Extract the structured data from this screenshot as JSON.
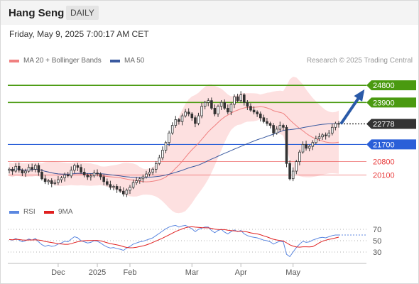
{
  "header": {
    "symbol": "Hang Seng",
    "timeframe": "DAILY",
    "datetime": "Friday, May 9, 2025 7:00:17 AM CET"
  },
  "legend": {
    "ma20": "MA 20 + Bollinger Bands",
    "ma50": "MA 50",
    "credit": "Research © 2025 Trading Central"
  },
  "rsi_legend": {
    "rsi": "RSI",
    "ma": "9MA"
  },
  "colors": {
    "ma20": "#f08080",
    "bands_fill": "#fde0e0",
    "ma50": "#3a5aa0",
    "resistance": "#4a9a10",
    "support": "#2a5fd8",
    "target": "#e83a3a",
    "current": "#333333",
    "arrow": "#2a5aa8",
    "candle": "#333333",
    "rsi": "#5b87e0",
    "rsi_ma": "#e02020"
  },
  "chart_data": [
    {
      "type": "candlestick",
      "title": "Hang Seng",
      "timeframe": "DAILY",
      "x_axis_labels": [
        "Dec",
        "2025",
        "Feb",
        "Mar",
        "Apr",
        "May"
      ],
      "y_range": [
        18700,
        25700
      ],
      "current_price": 22778,
      "key_levels": [
        {
          "value": 24800,
          "label": "24800",
          "kind": "resistance"
        },
        {
          "value": 23900,
          "label": "23900",
          "kind": "resistance"
        },
        {
          "value": 22778,
          "label": "22778",
          "kind": "current"
        },
        {
          "value": 21700,
          "label": "21700",
          "kind": "support"
        },
        {
          "value": 20800,
          "label": "20800",
          "kind": "target"
        },
        {
          "value": 20100,
          "label": "20100",
          "kind": "target"
        }
      ],
      "series": [
        {
          "name": "MA 20 + Bollinger Bands",
          "kind": "ma20_bollinger"
        },
        {
          "name": "MA 50",
          "kind": "ma50"
        }
      ],
      "closes": [
        20400,
        20300,
        20550,
        20350,
        20200,
        20300,
        20500,
        20400,
        20600,
        20250,
        19900,
        19750,
        19800,
        19650,
        19700,
        19850,
        19950,
        20100,
        20050,
        20350,
        20600,
        20500,
        20250,
        20100,
        20000,
        20050,
        20200,
        20150,
        20000,
        19750,
        19600,
        19450,
        19500,
        19350,
        19250,
        19100,
        19300,
        19450,
        19700,
        19800,
        19900,
        20000,
        20150,
        20250,
        20400,
        20700,
        21000,
        21400,
        21800,
        22300,
        22700,
        23000,
        22900,
        23200,
        23400,
        23300,
        23100,
        22800,
        23200,
        23700,
        23900,
        24000,
        23600,
        23300,
        23700,
        23900,
        23600,
        23400,
        23800,
        24200,
        24000,
        24300,
        23900,
        23700,
        23500,
        23400,
        23300,
        23100,
        22900,
        22800,
        22700,
        22300,
        22500,
        22700,
        22600,
        20700,
        19900,
        20300,
        20800,
        21300,
        21700,
        21500,
        21600,
        21800,
        22000,
        22100,
        22200,
        22150,
        22300,
        22600,
        22800,
        22778
      ],
      "rsi": {
        "series": [
          {
            "name": "RSI"
          },
          {
            "name": "9MA"
          }
        ],
        "levels": [
          70,
          50,
          30
        ],
        "y_range": [
          15,
          85
        ],
        "values": [
          52,
          51,
          54,
          51,
          48,
          50,
          53,
          51,
          54,
          48,
          43,
          40,
          42,
          40,
          41,
          44,
          46,
          49,
          48,
          53,
          57,
          55,
          50,
          48,
          46,
          47,
          50,
          49,
          46,
          42,
          39,
          37,
          38,
          36,
          35,
          33,
          37,
          40,
          44,
          46,
          48,
          49,
          51,
          53,
          55,
          59,
          63,
          67,
          71,
          74,
          76,
          77,
          74,
          76,
          77,
          74,
          71,
          66,
          70,
          72,
          74,
          74,
          68,
          64,
          68,
          70,
          65,
          62,
          66,
          69,
          66,
          68,
          62,
          59,
          57,
          56,
          55,
          53,
          51,
          50,
          48,
          44,
          47,
          49,
          48,
          26,
          22,
          30,
          38,
          44,
          49,
          47,
          48,
          51,
          53,
          55,
          56,
          55,
          57,
          59,
          60,
          60
        ]
      }
    }
  ]
}
